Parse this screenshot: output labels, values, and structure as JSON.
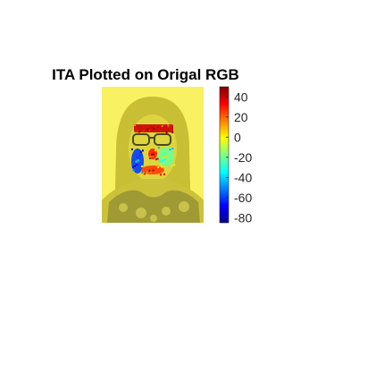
{
  "chart_data": {
    "type": "heatmap",
    "title": "ITA Plotted on Origal RGB",
    "colormap": "jet",
    "colorbar": {
      "clim": [
        -85,
        50
      ],
      "ticks": [
        40,
        20,
        0,
        -20,
        -40,
        -60,
        -80
      ],
      "tick_labels": [
        "40",
        "20",
        "0",
        "-20",
        "-40",
        "-60",
        "-80"
      ],
      "placement": "right"
    },
    "image_base_color": "#f7ef5a",
    "overlay_regions": [
      {
        "region": "forehead",
        "ita": 40
      },
      {
        "region": "left-cheek",
        "ita": -60
      },
      {
        "region": "right-cheek",
        "ita": -20
      },
      {
        "region": "nose",
        "ita": 30
      },
      {
        "region": "chin",
        "ita": 25
      }
    ]
  }
}
